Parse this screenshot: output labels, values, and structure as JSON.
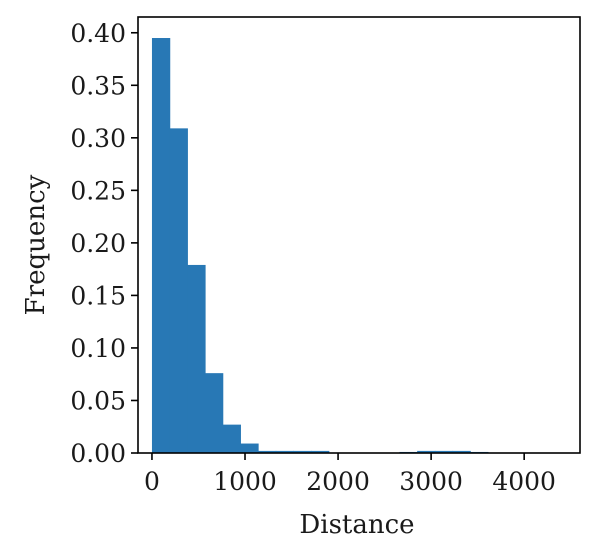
{
  "chart_data": {
    "type": "bar",
    "subtype": "histogram",
    "xlabel": "Distance",
    "ylabel": "Frequency",
    "xlim": [
      -150,
      4600
    ],
    "ylim": [
      0,
      0.415
    ],
    "xticks": [
      0,
      1000,
      2000,
      3000,
      4000
    ],
    "xtick_labels": [
      "0",
      "1000",
      "2000",
      "3000",
      "4000"
    ],
    "yticks": [
      0,
      0.05,
      0.1,
      0.15,
      0.2,
      0.25,
      0.3,
      0.35,
      0.4
    ],
    "ytick_labels": [
      "0.00",
      "0.05",
      "0.10",
      "0.15",
      "0.20",
      "0.25",
      "0.30",
      "0.35",
      "0.40"
    ],
    "grid": false,
    "bin_edges": [
      0,
      190,
      380,
      570,
      760,
      950,
      1140,
      1330,
      1520,
      1710,
      1900,
      2090,
      2280,
      2470,
      2660,
      2850,
      3040,
      3230,
      3420,
      3610,
      3800,
      3990,
      4180,
      4370
    ],
    "values": [
      0.395,
      0.309,
      0.179,
      0.076,
      0.027,
      0.009,
      0.002,
      0.002,
      0.002,
      0.002,
      0.0,
      0.0,
      0.0,
      0.0,
      0.001,
      0.002,
      0.002,
      0.002,
      0.001,
      0.0,
      0.0,
      0.0,
      0.0
    ],
    "bar_color": "#2878b5"
  }
}
